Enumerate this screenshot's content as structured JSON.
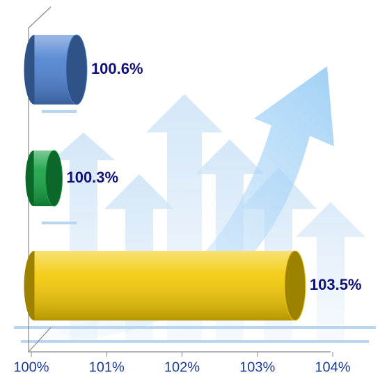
{
  "chart_data": {
    "type": "bar",
    "orientation": "horizontal",
    "categories": [
      null,
      null,
      null
    ],
    "values": [
      100.6,
      100.3,
      103.5
    ],
    "value_labels": [
      "100.6%",
      "100.3%",
      "103.5%"
    ],
    "colors": [
      "#4a7fcf",
      "#12a040",
      "#f2c800"
    ],
    "xlim": [
      100,
      104
    ],
    "xticks": [
      {
        "value": 100,
        "label": "100%"
      },
      {
        "value": 101,
        "label": "101%"
      },
      {
        "value": 102,
        "label": "102%"
      },
      {
        "value": 103,
        "label": "103%"
      },
      {
        "value": 104,
        "label": "104%"
      }
    ]
  }
}
